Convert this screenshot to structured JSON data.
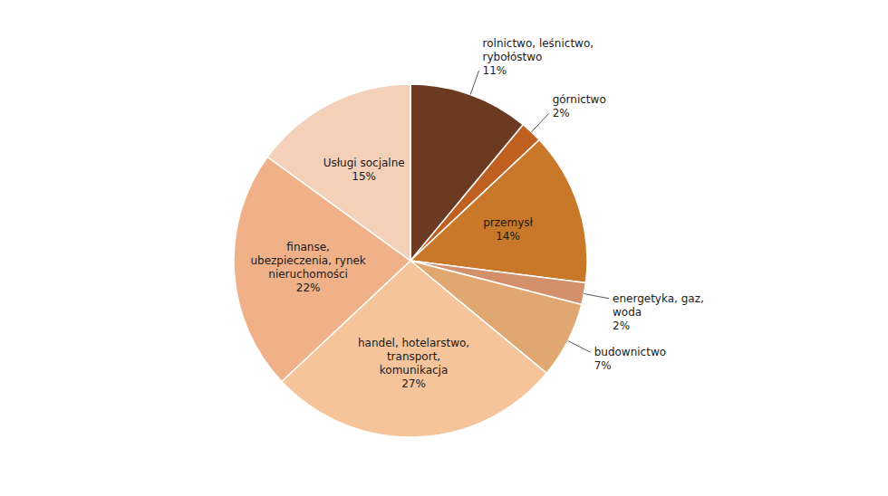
{
  "chart_data": {
    "type": "pie",
    "categories": [
      "rolnictwo, leśnictwo,\nrybołóstwo",
      "górnictwo",
      "przemysł",
      "energetyka, gaz,\nwoda",
      "budownictwo",
      "handel, hotelarstwo,\ntransport,\nkomunikacja",
      "finanse,\nubezpieczenia, rynek\nnieruchomości",
      "Usługi socjalne"
    ],
    "values": [
      11,
      2,
      14,
      2,
      7,
      27,
      22,
      15
    ],
    "value_labels": [
      "11%",
      "2%",
      "14%",
      "2%",
      "7%",
      "27%",
      "22%",
      "15%"
    ],
    "colors": [
      "#6B3A20",
      "#C06020",
      "#C87828",
      "#D4906A",
      "#E0A870",
      "#F5C49A",
      "#F0B088",
      "#F5D0B8"
    ]
  }
}
